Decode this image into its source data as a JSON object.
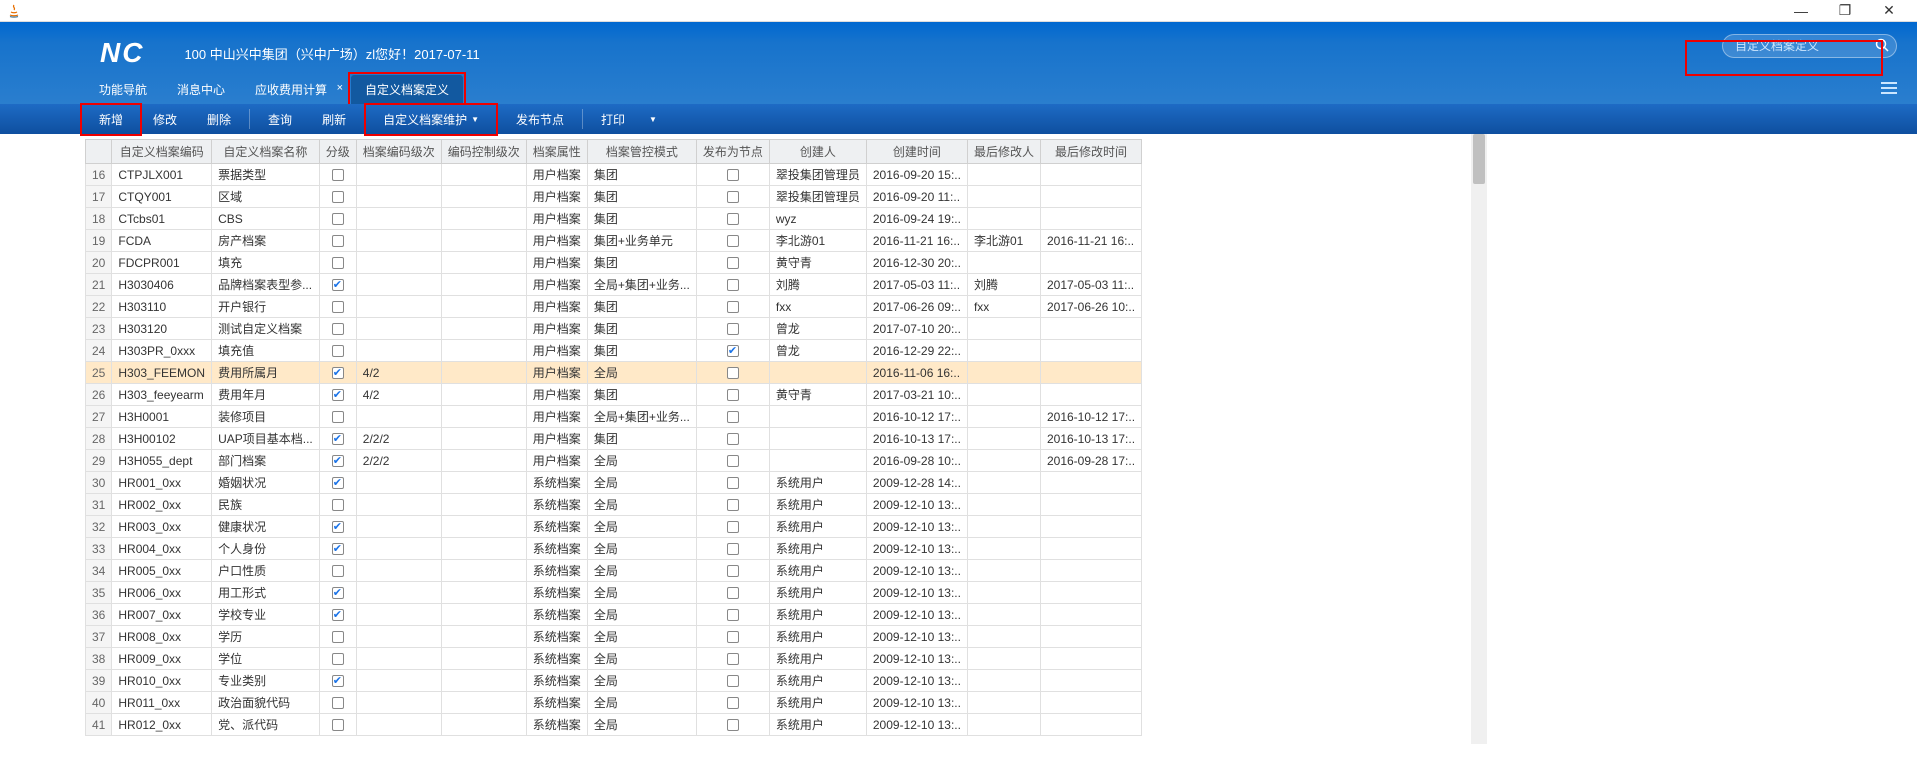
{
  "window": {
    "title": ""
  },
  "header": {
    "logo": "NC",
    "company": "100 中山兴中集团（兴中广场）zl您好！2017-07-11",
    "search_placeholder": "自定义档案定义"
  },
  "nav_tabs": [
    {
      "label": "功能导航",
      "closable": false,
      "active": false
    },
    {
      "label": "消息中心",
      "closable": false,
      "active": false
    },
    {
      "label": "应收费用计算",
      "closable": true,
      "active": false
    },
    {
      "label": "自定义档案定义",
      "closable": false,
      "active": true
    }
  ],
  "toolbar": {
    "add": "新增",
    "edit": "修改",
    "delete": "删除",
    "query": "查询",
    "refresh": "刷新",
    "maintain": "自定义档案维护",
    "publish": "发布节点",
    "print": "打印"
  },
  "columns": {
    "rownum": "",
    "code": "自定义档案编码",
    "name": "自定义档案名称",
    "level": "分级",
    "enc_level": "档案编码级次",
    "ctrl_level": "编码控制级次",
    "attr": "档案属性",
    "mg_mode": "档案管控模式",
    "pub_node": "发布为节点",
    "creator": "创建人",
    "ctime": "创建时间",
    "editor": "最后修改人",
    "etime": "最后修改时间"
  },
  "rows": [
    {
      "n": 16,
      "code": "CTPJLX001",
      "name": "票据类型",
      "lvl": false,
      "enc": "",
      "ctrl": "",
      "attr": "用户档案",
      "mgr": "集团",
      "pub": false,
      "creator": "翠投集团管理员",
      "ctime": "2016-09-20 15:..",
      "editor": "",
      "etime": ""
    },
    {
      "n": 17,
      "code": "CTQY001",
      "name": "区域",
      "lvl": false,
      "enc": "",
      "ctrl": "",
      "attr": "用户档案",
      "mgr": "集团",
      "pub": false,
      "creator": "翠投集团管理员",
      "ctime": "2016-09-20 11:..",
      "editor": "",
      "etime": ""
    },
    {
      "n": 18,
      "code": "CTcbs01",
      "name": "CBS",
      "lvl": false,
      "enc": "",
      "ctrl": "",
      "attr": "用户档案",
      "mgr": "集团",
      "pub": false,
      "creator": "wyz",
      "ctime": "2016-09-24 19:..",
      "editor": "",
      "etime": ""
    },
    {
      "n": 19,
      "code": "FCDA",
      "name": "房产档案",
      "lvl": false,
      "enc": "",
      "ctrl": "",
      "attr": "用户档案",
      "mgr": "集团+业务单元",
      "pub": false,
      "creator": "李北游01",
      "ctime": "2016-11-21 16:..",
      "editor": "李北游01",
      "etime": "2016-11-21 16:.."
    },
    {
      "n": 20,
      "code": "FDCPR001",
      "name": "填充",
      "lvl": false,
      "enc": "",
      "ctrl": "",
      "attr": "用户档案",
      "mgr": "集团",
      "pub": false,
      "creator": "黄守青",
      "ctime": "2016-12-30 20:..",
      "editor": "",
      "etime": ""
    },
    {
      "n": 21,
      "code": "H3030406",
      "name": "品牌档案表型参...",
      "lvl": true,
      "enc": "",
      "ctrl": "",
      "attr": "用户档案",
      "mgr": "全局+集团+业务...",
      "pub": false,
      "creator": "刘腾",
      "ctime": "2017-05-03 11:..",
      "editor": "刘腾",
      "etime": "2017-05-03 11:.."
    },
    {
      "n": 22,
      "code": "H303110",
      "name": "开户银行",
      "lvl": false,
      "enc": "",
      "ctrl": "",
      "attr": "用户档案",
      "mgr": "集团",
      "pub": false,
      "creator": "fxx",
      "ctime": "2017-06-26 09:..",
      "editor": "fxx",
      "etime": "2017-06-26 10:.."
    },
    {
      "n": 23,
      "code": "H303120",
      "name": "测试自定义档案",
      "lvl": false,
      "enc": "",
      "ctrl": "",
      "attr": "用户档案",
      "mgr": "集团",
      "pub": false,
      "creator": "曾龙",
      "ctime": "2017-07-10 20:..",
      "editor": "",
      "etime": ""
    },
    {
      "n": 24,
      "code": "H303PR_0xxx",
      "name": "填充值",
      "lvl": false,
      "enc": "",
      "ctrl": "",
      "attr": "用户档案",
      "mgr": "集团",
      "pub": true,
      "creator": "曾龙",
      "ctime": "2016-12-29 22:..",
      "editor": "",
      "etime": ""
    },
    {
      "n": 25,
      "code": "H303_FEEMON",
      "name": "费用所属月",
      "lvl": true,
      "enc": "4/2",
      "ctrl": "",
      "attr": "用户档案",
      "mgr": "全局",
      "pub": false,
      "creator": "",
      "ctime": "2016-11-06 16:..",
      "editor": "",
      "etime": "",
      "selected": true
    },
    {
      "n": 26,
      "code": "H303_feeyearm",
      "name": "费用年月",
      "lvl": true,
      "enc": "4/2",
      "ctrl": "",
      "attr": "用户档案",
      "mgr": "集团",
      "pub": false,
      "creator": "黄守青",
      "ctime": "2017-03-21 10:..",
      "editor": "",
      "etime": ""
    },
    {
      "n": 27,
      "code": "H3H0001",
      "name": "装修项目",
      "lvl": false,
      "enc": "",
      "ctrl": "",
      "attr": "用户档案",
      "mgr": "全局+集团+业务...",
      "pub": false,
      "creator": "",
      "ctime": "2016-10-12 17:..",
      "editor": "",
      "etime": "2016-10-12 17:.."
    },
    {
      "n": 28,
      "code": "H3H00102",
      "name": "UAP项目基本档...",
      "lvl": true,
      "enc": "2/2/2",
      "ctrl": "",
      "attr": "用户档案",
      "mgr": "集团",
      "pub": false,
      "creator": "",
      "ctime": "2016-10-13 17:..",
      "editor": "",
      "etime": "2016-10-13 17:.."
    },
    {
      "n": 29,
      "code": "H3H055_dept",
      "name": "部门档案",
      "lvl": true,
      "enc": "2/2/2",
      "ctrl": "",
      "attr": "用户档案",
      "mgr": "全局",
      "pub": false,
      "creator": "",
      "ctime": "2016-09-28 10:..",
      "editor": "",
      "etime": "2016-09-28 17:.."
    },
    {
      "n": 30,
      "code": "HR001_0xx",
      "name": "婚姻状况",
      "lvl": true,
      "enc": "",
      "ctrl": "",
      "attr": "系统档案",
      "mgr": "全局",
      "pub": false,
      "creator": "系统用户",
      "ctime": "2009-12-28 14:..",
      "editor": "",
      "etime": ""
    },
    {
      "n": 31,
      "code": "HR002_0xx",
      "name": "民族",
      "lvl": false,
      "enc": "",
      "ctrl": "",
      "attr": "系统档案",
      "mgr": "全局",
      "pub": false,
      "creator": "系统用户",
      "ctime": "2009-12-10 13:..",
      "editor": "",
      "etime": ""
    },
    {
      "n": 32,
      "code": "HR003_0xx",
      "name": "健康状况",
      "lvl": true,
      "enc": "",
      "ctrl": "",
      "attr": "系统档案",
      "mgr": "全局",
      "pub": false,
      "creator": "系统用户",
      "ctime": "2009-12-10 13:..",
      "editor": "",
      "etime": ""
    },
    {
      "n": 33,
      "code": "HR004_0xx",
      "name": "个人身份",
      "lvl": true,
      "enc": "",
      "ctrl": "",
      "attr": "系统档案",
      "mgr": "全局",
      "pub": false,
      "creator": "系统用户",
      "ctime": "2009-12-10 13:..",
      "editor": "",
      "etime": ""
    },
    {
      "n": 34,
      "code": "HR005_0xx",
      "name": "户口性质",
      "lvl": false,
      "enc": "",
      "ctrl": "",
      "attr": "系统档案",
      "mgr": "全局",
      "pub": false,
      "creator": "系统用户",
      "ctime": "2009-12-10 13:..",
      "editor": "",
      "etime": ""
    },
    {
      "n": 35,
      "code": "HR006_0xx",
      "name": "用工形式",
      "lvl": true,
      "enc": "",
      "ctrl": "",
      "attr": "系统档案",
      "mgr": "全局",
      "pub": false,
      "creator": "系统用户",
      "ctime": "2009-12-10 13:..",
      "editor": "",
      "etime": ""
    },
    {
      "n": 36,
      "code": "HR007_0xx",
      "name": "学校专业",
      "lvl": true,
      "enc": "",
      "ctrl": "",
      "attr": "系统档案",
      "mgr": "全局",
      "pub": false,
      "creator": "系统用户",
      "ctime": "2009-12-10 13:..",
      "editor": "",
      "etime": ""
    },
    {
      "n": 37,
      "code": "HR008_0xx",
      "name": "学历",
      "lvl": false,
      "enc": "",
      "ctrl": "",
      "attr": "系统档案",
      "mgr": "全局",
      "pub": false,
      "creator": "系统用户",
      "ctime": "2009-12-10 13:..",
      "editor": "",
      "etime": ""
    },
    {
      "n": 38,
      "code": "HR009_0xx",
      "name": "学位",
      "lvl": false,
      "enc": "",
      "ctrl": "",
      "attr": "系统档案",
      "mgr": "全局",
      "pub": false,
      "creator": "系统用户",
      "ctime": "2009-12-10 13:..",
      "editor": "",
      "etime": ""
    },
    {
      "n": 39,
      "code": "HR010_0xx",
      "name": "专业类别",
      "lvl": true,
      "enc": "",
      "ctrl": "",
      "attr": "系统档案",
      "mgr": "全局",
      "pub": false,
      "creator": "系统用户",
      "ctime": "2009-12-10 13:..",
      "editor": "",
      "etime": ""
    },
    {
      "n": 40,
      "code": "HR011_0xx",
      "name": "政治面貌代码",
      "lvl": false,
      "enc": "",
      "ctrl": "",
      "attr": "系统档案",
      "mgr": "全局",
      "pub": false,
      "creator": "系统用户",
      "ctime": "2009-12-10 13:..",
      "editor": "",
      "etime": ""
    },
    {
      "n": 41,
      "code": "HR012_0xx",
      "name": "党、派代码",
      "lvl": false,
      "enc": "",
      "ctrl": "",
      "attr": "系统档案",
      "mgr": "全局",
      "pub": false,
      "creator": "系统用户",
      "ctime": "2009-12-10 13:..",
      "editor": "",
      "etime": ""
    }
  ],
  "highlights": {
    "add_btn": true,
    "active_tab": true,
    "maintain_btn": true,
    "search": true
  },
  "colors": {
    "header_grad_top": "#0068d0",
    "header_grad_bot": "#2a7ece",
    "toolbar_grad_top": "#1e6bc5",
    "toolbar_grad_bot": "#0e4f9f",
    "table_header_bg": "#eef0f2",
    "border": "#d0d0d0",
    "selected_row": "#ffe9c8",
    "highlight_border": "#e00000"
  }
}
